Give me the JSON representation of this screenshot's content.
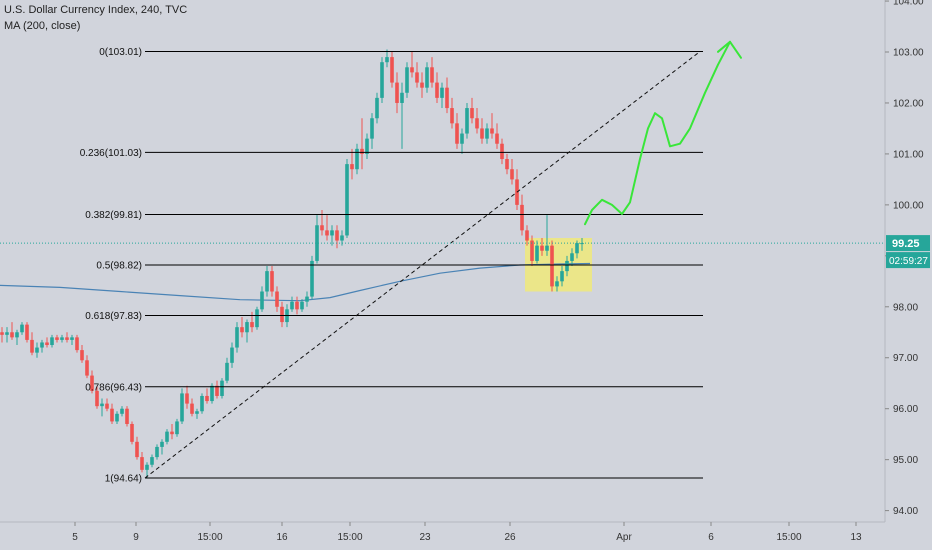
{
  "header": {
    "symbol_line": "U.S. Dollar Currency Index, 240, TVC",
    "indicator_line": "MA (200, close)"
  },
  "price_badge": {
    "price": "99.25",
    "countdown": "02:59:27",
    "color": "#26a69a"
  },
  "colors": {
    "up": "#26a69a",
    "down": "#ef5350",
    "ma": "#4a83b5",
    "arrow": "#39e639",
    "highlight": "#f3ec6e",
    "fib": "#000000",
    "background": "#d1d4dc"
  },
  "chart_data": {
    "type": "candlestick",
    "y_axis": {
      "range": [
        93.8,
        104.1
      ],
      "ticks": [
        "104.00",
        "103.00",
        "102.00",
        "101.00",
        "100.00",
        "99.00",
        "98.00",
        "97.00",
        "96.00",
        "95.00",
        "94.00"
      ]
    },
    "x_axis": {
      "ticks": [
        "5",
        "9",
        "15:00",
        "16",
        "15:00",
        "23",
        "26",
        "Apr",
        "6",
        "15:00",
        "13"
      ]
    },
    "fib_levels": [
      {
        "label": "0(103.01)",
        "price": 103.01
      },
      {
        "label": "0.236(101.03)",
        "price": 101.03
      },
      {
        "label": "0.382(99.81)",
        "price": 99.81
      },
      {
        "label": "0.5(98.82)",
        "price": 98.82
      },
      {
        "label": "0.618(97.83)",
        "price": 97.83
      },
      {
        "label": "0.786(96.43)",
        "price": 96.43
      },
      {
        "label": "1(94.64)",
        "price": 94.64
      }
    ],
    "current_price": 99.25,
    "ma_200": [
      [
        0,
        98.42
      ],
      [
        60,
        98.38
      ],
      [
        120,
        98.3
      ],
      [
        180,
        98.22
      ],
      [
        240,
        98.14
      ],
      [
        300,
        98.12
      ],
      [
        330,
        98.18
      ],
      [
        360,
        98.32
      ],
      [
        400,
        98.5
      ],
      [
        440,
        98.66
      ],
      [
        480,
        98.76
      ],
      [
        520,
        98.82
      ],
      [
        560,
        98.84
      ],
      [
        590,
        98.85
      ]
    ],
    "trend_line": {
      "from": [
        145,
        94.64
      ],
      "to": [
        700,
        103.01
      ]
    },
    "highlight_box": {
      "x_from": 525,
      "x_to": 592,
      "price_from": 98.3,
      "price_to": 99.35
    },
    "candles": [
      [
        2,
        97.5,
        97.6,
        97.3,
        97.45
      ],
      [
        7,
        97.45,
        97.6,
        97.3,
        97.5
      ],
      [
        12,
        97.5,
        97.7,
        97.35,
        97.4
      ],
      [
        17,
        97.4,
        97.55,
        97.25,
        97.5
      ],
      [
        22,
        97.5,
        97.7,
        97.45,
        97.65
      ],
      [
        27,
        97.65,
        97.7,
        97.3,
        97.35
      ],
      [
        32,
        97.35,
        97.5,
        97.05,
        97.1
      ],
      [
        37,
        97.1,
        97.3,
        97.0,
        97.2
      ],
      [
        42,
        97.2,
        97.35,
        97.1,
        97.3
      ],
      [
        47,
        97.3,
        97.4,
        97.2,
        97.25
      ],
      [
        52,
        97.25,
        97.45,
        97.2,
        97.4
      ],
      [
        57,
        97.4,
        97.45,
        97.3,
        97.35
      ],
      [
        62,
        97.35,
        97.45,
        97.3,
        97.4
      ],
      [
        67,
        97.4,
        97.5,
        97.3,
        97.35
      ],
      [
        72,
        97.35,
        97.45,
        97.25,
        97.4
      ],
      [
        77,
        97.4,
        97.45,
        97.1,
        97.15
      ],
      [
        82,
        97.15,
        97.25,
        96.9,
        96.95
      ],
      [
        87,
        96.95,
        97.05,
        96.6,
        96.65
      ],
      [
        92,
        96.65,
        96.75,
        96.3,
        96.35
      ],
      [
        97,
        96.35,
        96.45,
        96.0,
        96.05
      ],
      [
        102,
        96.05,
        96.2,
        95.85,
        96.1
      ],
      [
        107,
        96.1,
        96.2,
        95.95,
        96.0
      ],
      [
        112,
        96.0,
        96.1,
        95.7,
        95.75
      ],
      [
        117,
        95.75,
        95.95,
        95.7,
        95.9
      ],
      [
        122,
        95.9,
        96.05,
        95.85,
        96.0
      ],
      [
        127,
        96.0,
        96.05,
        95.65,
        95.7
      ],
      [
        132,
        95.7,
        95.75,
        95.3,
        95.35
      ],
      [
        137,
        95.35,
        95.45,
        95.0,
        95.05
      ],
      [
        142,
        95.05,
        95.15,
        94.75,
        94.8
      ],
      [
        147,
        94.8,
        94.95,
        94.64,
        94.9
      ],
      [
        152,
        94.9,
        95.1,
        94.85,
        95.05
      ],
      [
        157,
        95.05,
        95.3,
        95.0,
        95.25
      ],
      [
        162,
        95.25,
        95.4,
        95.1,
        95.35
      ],
      [
        167,
        95.35,
        95.6,
        95.3,
        95.55
      ],
      [
        172,
        95.55,
        95.7,
        95.4,
        95.5
      ],
      [
        177,
        95.5,
        95.8,
        95.45,
        95.75
      ],
      [
        182,
        95.75,
        96.4,
        95.7,
        96.3
      ],
      [
        187,
        96.3,
        96.45,
        96.0,
        96.1
      ],
      [
        192,
        96.1,
        96.2,
        95.85,
        95.9
      ],
      [
        197,
        95.9,
        96.0,
        95.8,
        95.95
      ],
      [
        202,
        95.95,
        96.3,
        95.9,
        96.25
      ],
      [
        207,
        96.25,
        96.4,
        96.1,
        96.15
      ],
      [
        212,
        96.15,
        96.5,
        96.1,
        96.45
      ],
      [
        217,
        96.45,
        96.55,
        96.2,
        96.25
      ],
      [
        222,
        96.25,
        96.6,
        96.2,
        96.55
      ],
      [
        227,
        96.55,
        97.0,
        96.5,
        96.9
      ],
      [
        232,
        96.9,
        97.3,
        96.8,
        97.2
      ],
      [
        237,
        97.2,
        97.7,
        97.1,
        97.6
      ],
      [
        242,
        97.6,
        97.8,
        97.4,
        97.5
      ],
      [
        247,
        97.5,
        97.75,
        97.3,
        97.7
      ],
      [
        252,
        97.7,
        97.9,
        97.5,
        97.6
      ],
      [
        257,
        97.6,
        98.0,
        97.55,
        97.95
      ],
      [
        262,
        97.95,
        98.4,
        97.9,
        98.3
      ],
      [
        267,
        98.3,
        98.8,
        98.2,
        98.7
      ],
      [
        272,
        98.7,
        98.8,
        98.2,
        98.3
      ],
      [
        277,
        98.3,
        98.4,
        97.9,
        98.0
      ],
      [
        282,
        98.0,
        98.1,
        97.6,
        97.7
      ],
      [
        287,
        97.7,
        98.05,
        97.6,
        97.95
      ],
      [
        292,
        97.95,
        98.2,
        97.9,
        98.1
      ],
      [
        297,
        98.1,
        98.2,
        97.85,
        97.95
      ],
      [
        302,
        97.95,
        98.15,
        97.9,
        98.1
      ],
      [
        307,
        98.1,
        98.3,
        98.0,
        98.2
      ],
      [
        312,
        98.2,
        99.0,
        98.15,
        98.9
      ],
      [
        317,
        98.9,
        99.8,
        98.85,
        99.6
      ],
      [
        322,
        99.6,
        99.9,
        99.4,
        99.5
      ],
      [
        327,
        99.5,
        99.8,
        99.3,
        99.4
      ],
      [
        332,
        99.4,
        99.6,
        99.2,
        99.5
      ],
      [
        337,
        99.5,
        99.6,
        99.15,
        99.3
      ],
      [
        342,
        99.3,
        99.5,
        99.2,
        99.4
      ],
      [
        347,
        99.4,
        100.9,
        99.35,
        100.8
      ],
      [
        352,
        100.8,
        101.1,
        100.5,
        100.7
      ],
      [
        357,
        100.7,
        101.2,
        100.6,
        101.1
      ],
      [
        362,
        101.1,
        101.7,
        100.7,
        101.0
      ],
      [
        367,
        101.0,
        101.4,
        100.9,
        101.3
      ],
      [
        372,
        101.3,
        101.8,
        101.1,
        101.7
      ],
      [
        377,
        101.7,
        102.2,
        101.6,
        102.1
      ],
      [
        382,
        102.1,
        102.9,
        102.0,
        102.8
      ],
      [
        387,
        102.8,
        103.05,
        102.7,
        102.9
      ],
      [
        392,
        102.9,
        103.0,
        102.3,
        102.4
      ],
      [
        397,
        102.4,
        102.6,
        101.8,
        102.0
      ],
      [
        402,
        102.0,
        102.4,
        101.1,
        102.2
      ],
      [
        407,
        102.2,
        102.8,
        102.1,
        102.7
      ],
      [
        412,
        102.7,
        103.01,
        102.5,
        102.6
      ],
      [
        417,
        102.6,
        102.8,
        102.3,
        102.4
      ],
      [
        422,
        102.4,
        102.6,
        102.1,
        102.3
      ],
      [
        427,
        102.3,
        102.8,
        102.2,
        102.7
      ],
      [
        432,
        102.7,
        102.9,
        102.3,
        102.4
      ],
      [
        437,
        102.4,
        102.6,
        102.0,
        102.1
      ],
      [
        442,
        102.1,
        102.4,
        101.9,
        102.3
      ],
      [
        447,
        102.3,
        102.5,
        101.8,
        101.9
      ],
      [
        452,
        101.9,
        102.1,
        101.5,
        101.6
      ],
      [
        457,
        101.6,
        101.8,
        101.1,
        101.2
      ],
      [
        462,
        101.2,
        101.5,
        101.0,
        101.4
      ],
      [
        467,
        101.4,
        102.0,
        101.3,
        101.9
      ],
      [
        472,
        101.9,
        102.1,
        101.6,
        101.7
      ],
      [
        477,
        101.7,
        101.9,
        101.4,
        101.5
      ],
      [
        482,
        101.5,
        101.7,
        101.2,
        101.3
      ],
      [
        487,
        101.3,
        101.6,
        101.2,
        101.5
      ],
      [
        492,
        101.5,
        101.8,
        101.3,
        101.4
      ],
      [
        497,
        101.4,
        101.6,
        101.1,
        101.2
      ],
      [
        502,
        101.2,
        101.3,
        100.8,
        100.9
      ],
      [
        507,
        100.9,
        101.0,
        100.6,
        100.7
      ],
      [
        512,
        100.7,
        100.9,
        100.4,
        100.5
      ],
      [
        517,
        100.5,
        100.7,
        99.9,
        100.0
      ],
      [
        522,
        100.0,
        100.2,
        99.4,
        99.5
      ],
      [
        527,
        99.5,
        99.6,
        99.2,
        99.3
      ],
      [
        532,
        99.3,
        99.4,
        98.8,
        98.9
      ],
      [
        537,
        98.9,
        99.3,
        98.85,
        99.2
      ],
      [
        542,
        99.2,
        99.35,
        99.0,
        99.1
      ],
      [
        547,
        99.1,
        99.8,
        99.0,
        99.2
      ],
      [
        552,
        99.2,
        99.3,
        98.3,
        98.4
      ],
      [
        557,
        98.4,
        98.6,
        98.3,
        98.5
      ],
      [
        562,
        98.5,
        98.8,
        98.4,
        98.7
      ],
      [
        567,
        98.7,
        99.0,
        98.6,
        98.9
      ],
      [
        572,
        98.9,
        99.15,
        98.8,
        99.05
      ],
      [
        577,
        99.05,
        99.3,
        98.95,
        99.25
      ],
      [
        582,
        99.25,
        99.35,
        99.1,
        99.25
      ]
    ],
    "forecast_arrow": [
      [
        585,
        99.62
      ],
      [
        592,
        99.9
      ],
      [
        602,
        100.1
      ],
      [
        612,
        100.0
      ],
      [
        622,
        99.82
      ],
      [
        630,
        100.05
      ],
      [
        640,
        100.9
      ],
      [
        648,
        101.5
      ],
      [
        655,
        101.8
      ],
      [
        662,
        101.7
      ],
      [
        670,
        101.15
      ],
      [
        680,
        101.2
      ],
      [
        690,
        101.5
      ],
      [
        705,
        102.2
      ],
      [
        718,
        102.75
      ],
      [
        730,
        103.2
      ]
    ]
  }
}
